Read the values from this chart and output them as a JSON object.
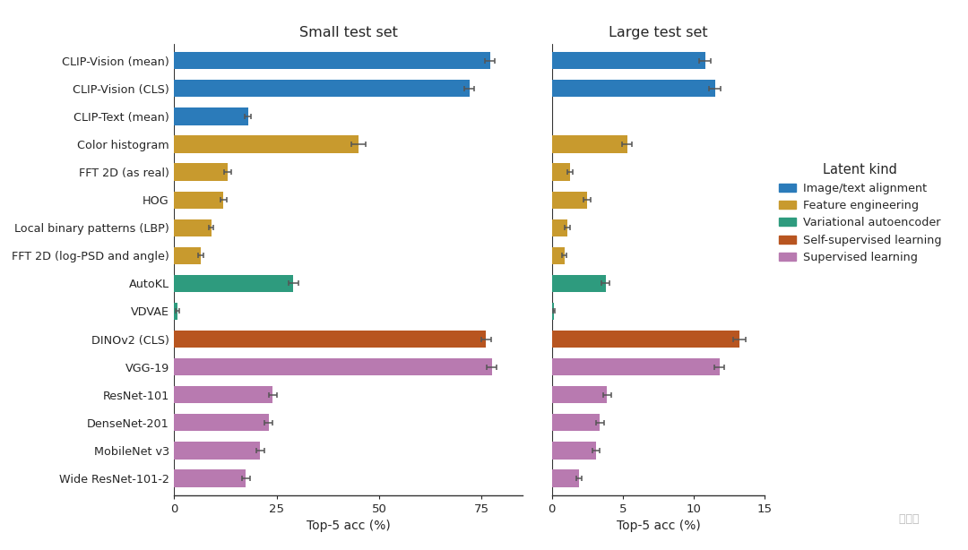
{
  "categories": [
    "CLIP-Vision (mean)",
    "CLIP-Vision (CLS)",
    "CLIP-Text (mean)",
    "Color histogram",
    "FFT 2D (as real)",
    "HOG",
    "Local binary patterns (LBP)",
    "FFT 2D (log-PSD and angle)",
    "AutoKL",
    "VDVAE",
    "DINOv2 (CLS)",
    "VGG-19",
    "ResNet-101",
    "DenseNet-201",
    "MobileNet v3",
    "Wide ResNet-101-2"
  ],
  "small_values": [
    77.0,
    72.0,
    18.0,
    45.0,
    13.0,
    12.0,
    9.0,
    6.5,
    29.0,
    0.8,
    76.0,
    77.5,
    24.0,
    23.0,
    21.0,
    17.5
  ],
  "small_errors": [
    1.2,
    1.2,
    0.8,
    1.8,
    0.8,
    0.8,
    0.6,
    0.6,
    1.2,
    0.4,
    1.2,
    1.2,
    1.0,
    1.0,
    0.9,
    0.9
  ],
  "large_values": [
    10.8,
    11.5,
    0.0,
    5.3,
    1.3,
    2.5,
    1.1,
    0.9,
    3.8,
    0.15,
    13.2,
    11.8,
    3.9,
    3.4,
    3.1,
    1.9
  ],
  "large_errors": [
    0.4,
    0.4,
    0.0,
    0.35,
    0.18,
    0.25,
    0.18,
    0.15,
    0.28,
    0.08,
    0.45,
    0.35,
    0.28,
    0.28,
    0.25,
    0.18
  ],
  "colors": {
    "CLIP-Vision (mean)": "#2b7bba",
    "CLIP-Vision (CLS)": "#2b7bba",
    "CLIP-Text (mean)": "#2b7bba",
    "Color histogram": "#c89a2e",
    "FFT 2D (as real)": "#c89a2e",
    "HOG": "#c89a2e",
    "Local binary patterns (LBP)": "#c89a2e",
    "FFT 2D (log-PSD and angle)": "#c89a2e",
    "AutoKL": "#2e9b7e",
    "VDVAE": "#2e9b7e",
    "DINOv2 (CLS)": "#b85520",
    "VGG-19": "#b87ab0",
    "ResNet-101": "#b87ab0",
    "DenseNet-201": "#b87ab0",
    "MobileNet v3": "#b87ab0",
    "Wide ResNet-101-2": "#b87ab0"
  },
  "legend_labels": [
    "Image/text alignment",
    "Feature engineering",
    "Variational autoencoder",
    "Self-supervised learning",
    "Supervised learning"
  ],
  "legend_colors": [
    "#2b7bba",
    "#c89a2e",
    "#2e9b7e",
    "#b85520",
    "#b87ab0"
  ],
  "small_xlim": [
    0,
    85
  ],
  "large_xlim": [
    0,
    15
  ],
  "small_xticks": [
    0,
    25,
    50,
    75
  ],
  "large_xticks": [
    0,
    5,
    10,
    15
  ],
  "title_small": "Small test set",
  "title_large": "Large test set",
  "xlabel": "Top-5 acc (%)",
  "legend_title": "Latent kind",
  "background_color": "#ffffff"
}
